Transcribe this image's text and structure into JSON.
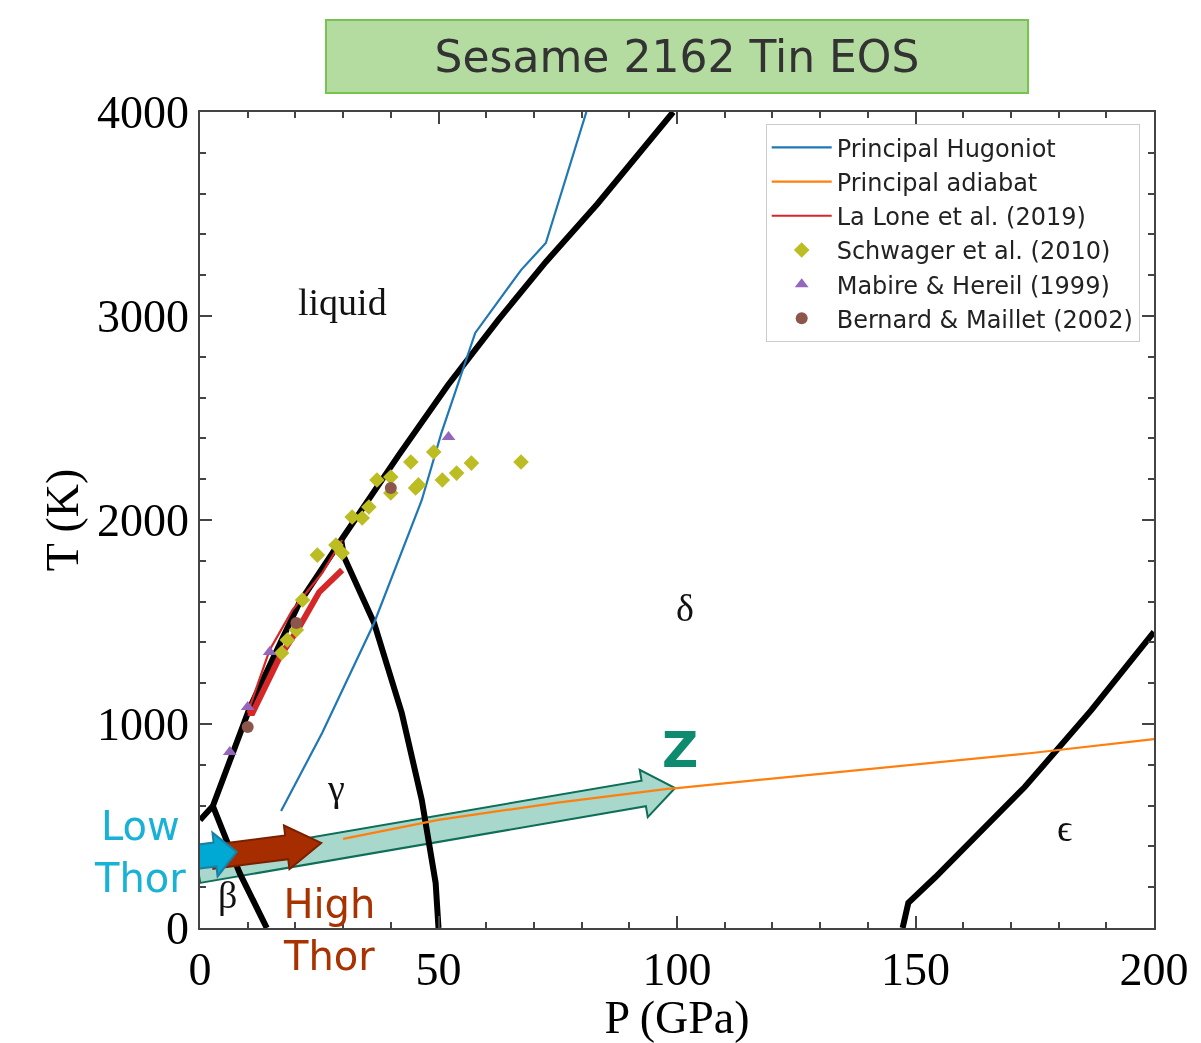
{
  "chart_data": {
    "type": "line",
    "title": "Sesame 2162 Tin EOS",
    "xlabel": "P (GPa)",
    "ylabel": "T (K)",
    "xlim": [
      0,
      200
    ],
    "ylim": [
      0,
      4000
    ],
    "xticks": [
      0,
      {
        "value": 10,
        "label": null
      },
      {
        "value": 20,
        "label": null
      },
      {
        "value": 30,
        "label": null
      },
      {
        "value": 40,
        "label": null
      },
      50,
      {
        "value": 60,
        "label": null
      },
      {
        "value": 70,
        "label": null
      },
      {
        "value": 80,
        "label": null
      },
      {
        "value": 90,
        "label": null
      },
      100,
      {
        "value": 110,
        "label": null
      },
      {
        "value": 120,
        "label": null
      },
      {
        "value": 130,
        "label": null
      },
      {
        "value": 140,
        "label": null
      },
      150,
      {
        "value": 160,
        "label": null
      },
      {
        "value": 170,
        "label": null
      },
      {
        "value": 180,
        "label": null
      },
      {
        "value": 190,
        "label": null
      },
      200
    ],
    "yticks": [
      0,
      {
        "value": 200,
        "label": null
      },
      {
        "value": 400,
        "label": null
      },
      {
        "value": 600,
        "label": null
      },
      {
        "value": 800,
        "label": null
      },
      1000,
      {
        "value": 1200,
        "label": null
      },
      {
        "value": 1400,
        "label": null
      },
      {
        "value": 1600,
        "label": null
      },
      {
        "value": 1800,
        "label": null
      },
      2000,
      {
        "value": 2200,
        "label": null
      },
      {
        "value": 2400,
        "label": null
      },
      {
        "value": 2600,
        "label": null
      },
      {
        "value": 2800,
        "label": null
      },
      3000,
      {
        "value": 3200,
        "label": null
      },
      {
        "value": 3400,
        "label": null
      },
      {
        "value": 3600,
        "label": null
      },
      {
        "value": 3800,
        "label": null
      },
      4000
    ],
    "grid": false,
    "legend": "top right",
    "series": [
      {
        "color": "#000000",
        "x": [
          0,
          2.7,
          10.4,
          20.8,
          29.6,
          41.7,
          52,
          62.5,
          72.5,
          83.3,
          99.2
        ],
        "values": [
          529,
          598,
          1078,
          1593,
          1902,
          2319,
          2662,
          2980,
          3265,
          3549,
          4000
        ]
      },
      {
        "color": "#000000",
        "x": [
          2.7,
          8.3,
          14
        ],
        "values": [
          598,
          270,
          0
        ]
      },
      {
        "color": "#000000",
        "x": [
          29.6,
          30.2,
          36.5,
          42.3,
          46.5,
          49.4,
          50
        ],
        "values": [
          1902,
          1819,
          1495,
          1054,
          627,
          221,
          0
        ]
      },
      {
        "color": "#000000",
        "x": [
          147.3,
          148.5,
          154.2,
          172.9,
          186.9,
          200
        ],
        "values": [
          0,
          123,
          250,
          691,
          1069,
          1451
        ]
      },
      {
        "name": "Principal Hugoniot",
        "color": "#1f77b4",
        "x": [
          17,
          25.6,
          36.5,
          46.5,
          50.6,
          57.7,
          67.3,
          72.5,
          81
        ],
        "values": [
          573,
          956,
          1495,
          2098,
          2426,
          2917,
          3225,
          3358,
          4000
        ]
      },
      {
        "name": "Principal adiabat",
        "color": "#ff7f0e",
        "x": [
          30,
          50,
          75,
          98,
          100,
          174.4,
          200
        ],
        "values": [
          437,
          530,
          615,
          682,
          686,
          858,
          926
        ]
      },
      {
        "name": "La Lone et al. (2019)",
        "color": "#d62728",
        "x": [
          10,
          14.6,
          19.4,
          25.6,
          29.8
        ],
        "values": [
          1054,
          1363,
          1559,
          1740,
          1902
        ]
      },
      {
        "color": "#d62728",
        "x": [
          10,
          11,
          16.7,
          20.8,
          25,
          29.8
        ],
        "values": [
          1054,
          1054,
          1328,
          1475,
          1647,
          1755
        ]
      },
      {
        "type": "scatter",
        "marker": "diamond",
        "name": "Schwager et al. (2010)",
        "color": "#bcbd22",
        "x": [
          17.1,
          18.3,
          20.2,
          21.5,
          24.6,
          28.5,
          29.8,
          31.9,
          34,
          35.4,
          37.1,
          40,
          40,
          44.2,
          45.2,
          45.8,
          49,
          50.8,
          53.8,
          56.9,
          67.3
        ],
        "values": [
          1348,
          1412,
          1461,
          1608,
          1828,
          1877,
          1838,
          2015,
          2010,
          2064,
          2196,
          2211,
          2132,
          2284,
          2157,
          2172,
          2333,
          2196,
          2230,
          2279,
          2284
        ]
      },
      {
        "type": "scatter",
        "marker": "triangle",
        "name": "Mabire & Hereil (1999)",
        "color": "#9467bd",
        "x": [
          6.25,
          10,
          14.6,
          52.1
        ],
        "values": [
          863,
          1083,
          1353,
          2407
        ]
      },
      {
        "type": "scatter",
        "marker": "circle",
        "name": "Bernard & Maillet (2002)",
        "color": "#8c564b",
        "x": [
          10,
          20.2,
          40
        ],
        "values": [
          985,
          1495,
          2157
        ]
      }
    ],
    "annotations": [
      "liquid",
      "δ",
      "γ",
      "β",
      "ϵ",
      {
        "text": "Low\nThor",
        "x": 7.7,
        "y": 373
      },
      "High\nThor",
      {
        "text": "Z",
        "x": 99.6,
        "y": 686
      }
    ]
  }
}
